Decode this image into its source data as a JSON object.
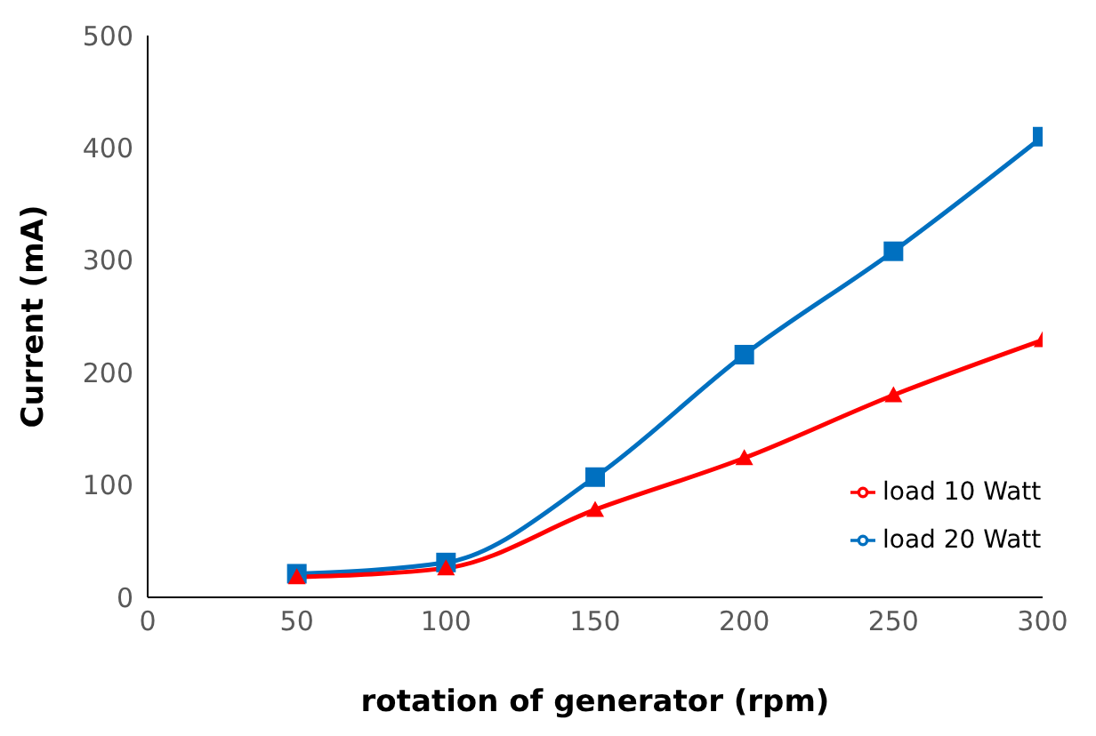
{
  "chart_data": {
    "type": "line",
    "xlabel": "rotation of generator (rpm)",
    "ylabel": "Current (mA)",
    "x": [
      50,
      100,
      150,
      200,
      250,
      300
    ],
    "series": [
      {
        "name": "load 10 Watt",
        "color": "#ff0000",
        "marker": "triangle",
        "values": [
          18,
          26,
          78,
          124,
          180,
          229
        ]
      },
      {
        "name": "load 20 Watt",
        "color": "#0070c0",
        "marker": "square",
        "values": [
          21,
          31,
          107,
          216,
          308,
          410
        ]
      }
    ],
    "xlim": [
      0,
      300
    ],
    "xticks": [
      0,
      50,
      100,
      150,
      200,
      250,
      300
    ],
    "ylim": [
      0,
      500
    ],
    "yticks": [
      0,
      100,
      200,
      300,
      400,
      500
    ],
    "grid": false,
    "legend": "bottom right"
  }
}
